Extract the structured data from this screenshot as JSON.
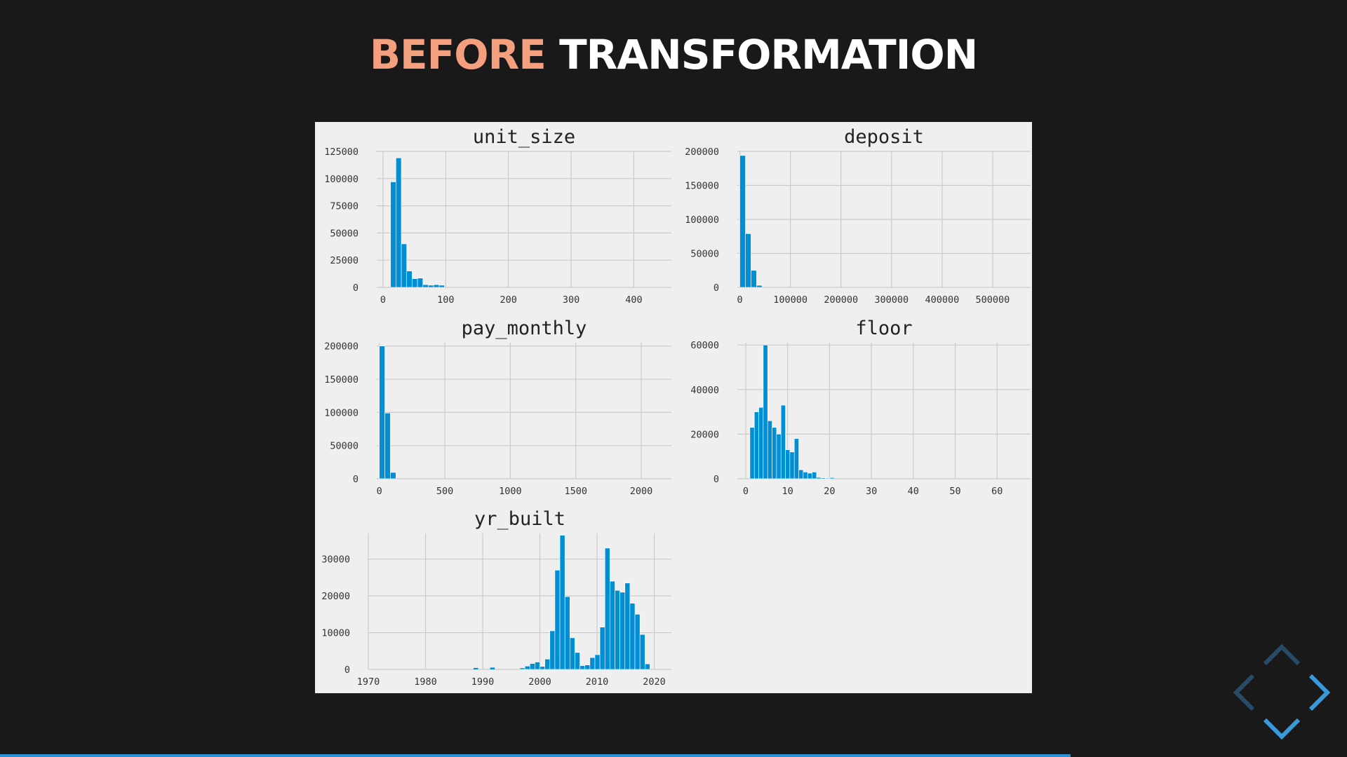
{
  "slide": {
    "title_accent": "BEFORE",
    "title_rest": "TRANSFORMATION",
    "accent_color": "#f4a07e",
    "progress": 0.795
  },
  "navigation": {
    "controls": [
      "chevron-up-icon",
      "chevron-left-icon",
      "chevron-right-icon",
      "chevron-down-icon"
    ],
    "active_color": "#3a9ad9",
    "inactive_color": "#274a66"
  },
  "chart_data": [
    {
      "type": "bar",
      "title": "unit_size",
      "color": "#008fd5",
      "grid": true,
      "xlim": [
        -10,
        460
      ],
      "ylim": [
        0,
        125000
      ],
      "xticks": [
        0,
        100,
        200,
        300,
        400
      ],
      "yticks": [
        0,
        25000,
        50000,
        75000,
        100000,
        125000
      ],
      "bin_start": 12,
      "bin_width": 8.6,
      "values": [
        97000,
        119000,
        40000,
        15000,
        8000,
        8500,
        2500,
        2000,
        2500,
        2000
      ]
    },
    {
      "type": "bar",
      "title": "deposit",
      "color": "#008fd5",
      "grid": true,
      "xlim": [
        -5000,
        575000
      ],
      "ylim": [
        0,
        200000
      ],
      "xticks": [
        0,
        100000,
        200000,
        300000,
        400000,
        500000
      ],
      "yticks": [
        0,
        50000,
        100000,
        150000,
        200000
      ],
      "bin_start": 0,
      "bin_width": 11000,
      "values": [
        194000,
        79000,
        25000,
        3000
      ]
    },
    {
      "type": "bar",
      "title": "pay_monthly",
      "color": "#008fd5",
      "grid": true,
      "xlim": [
        -20,
        2230
      ],
      "ylim": [
        0,
        205000
      ],
      "xticks": [
        0,
        500,
        1000,
        1500,
        2000
      ],
      "yticks": [
        0,
        50000,
        100000,
        150000,
        200000
      ],
      "bin_start": 0,
      "bin_width": 42,
      "values": [
        200000,
        99000,
        9500
      ]
    },
    {
      "type": "bar",
      "title": "floor",
      "color": "#008fd5",
      "grid": true,
      "xlim": [
        -2,
        68
      ],
      "ylim": [
        0,
        61000
      ],
      "xticks": [
        0,
        10,
        20,
        30,
        40,
        50,
        60
      ],
      "yticks": [
        0,
        20000,
        40000,
        60000
      ],
      "bin_start": 1,
      "bin_width": 1.06,
      "values": [
        23000,
        30000,
        32000,
        60000,
        26000,
        23000,
        20000,
        33000,
        13000,
        12000,
        18000,
        4000,
        3000,
        2500,
        3000,
        600,
        400,
        300,
        500
      ]
    },
    {
      "type": "bar",
      "title": "yr_built",
      "color": "#008fd5",
      "grid": true,
      "xlim": [
        1970,
        2023
      ],
      "ylim": [
        0,
        37000
      ],
      "xticks": [
        1970,
        1980,
        1990,
        2000,
        2010,
        2020
      ],
      "yticks": [
        0,
        10000,
        20000,
        30000
      ],
      "bin_start": 1996.5,
      "bin_width": 0.875,
      "values": [
        400,
        900,
        1600,
        2000,
        800,
        2800,
        10500,
        27000,
        36500,
        19800,
        8600,
        4600,
        1000,
        1200,
        3200,
        4000,
        11500,
        33000,
        24000,
        21500,
        21000,
        23500,
        18000,
        15000,
        9500,
        1500
      ],
      "extra_bars": [
        {
          "x": 1988.4,
          "width": 0.8,
          "value": 400
        },
        {
          "x": 1991.3,
          "width": 0.8,
          "value": 500
        }
      ]
    }
  ]
}
